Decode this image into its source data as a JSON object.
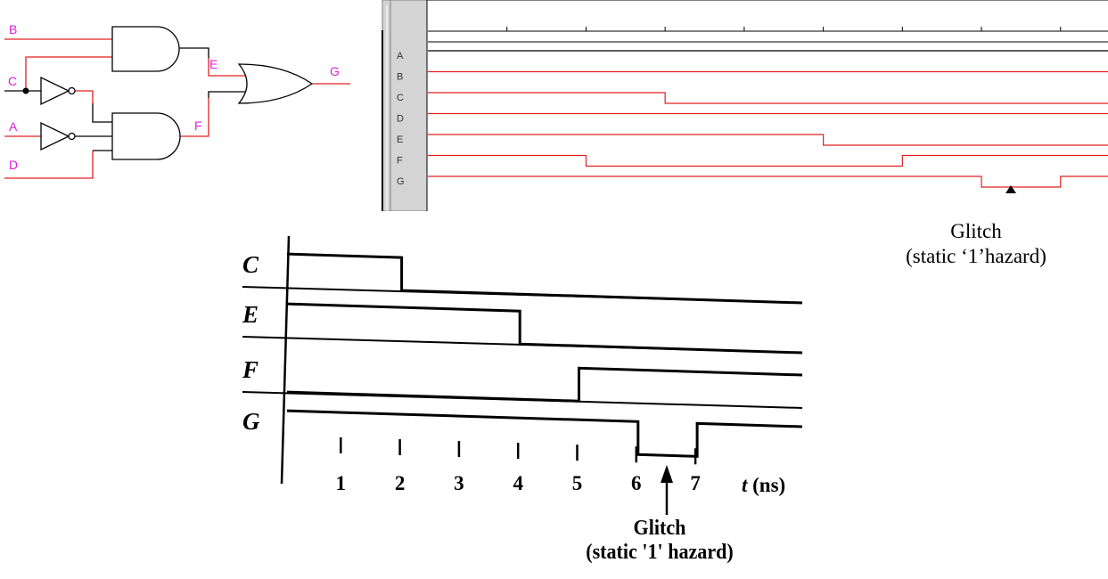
{
  "circuit": {
    "input_labels": [
      "B",
      "C",
      "A",
      "D"
    ],
    "node_labels": [
      "E",
      "F"
    ],
    "output_label": "G",
    "gates": [
      "and-gate",
      "not-gate",
      "not-gate",
      "and-gate",
      "or-gate"
    ],
    "colors": {
      "label": "#e020e0",
      "wire_red": "#e02020",
      "wire_black": "#000000"
    }
  },
  "simulator": {
    "signals": [
      {
        "name": "A",
        "levels": [
          [
            0,
            1
          ]
        ],
        "color": "#000000"
      },
      {
        "name": "B",
        "levels": [
          [
            0,
            1
          ]
        ],
        "color": "#e02020"
      },
      {
        "name": "C",
        "levels": [
          [
            0,
            1
          ],
          [
            3,
            0
          ]
        ],
        "color": "#e02020"
      },
      {
        "name": "D",
        "levels": [
          [
            0,
            1
          ]
        ],
        "color": "#e02020"
      },
      {
        "name": "E",
        "levels": [
          [
            0,
            1
          ],
          [
            5,
            0
          ]
        ],
        "color": "#e02020"
      },
      {
        "name": "F",
        "levels": [
          [
            0,
            1
          ],
          [
            2,
            0
          ],
          [
            6,
            1
          ]
        ],
        "color": "#e02020"
      },
      {
        "name": "G",
        "levels": [
          [
            0,
            1
          ],
          [
            7,
            0
          ],
          [
            8,
            1
          ]
        ],
        "color": "#e02020"
      }
    ],
    "time_span": 8.6,
    "caption": [
      "Glitch",
      "(static ‘1’hazard)"
    ]
  },
  "textbook": {
    "signals": [
      {
        "name": "C",
        "levels": [
          [
            0,
            1
          ],
          [
            2,
            0
          ]
        ]
      },
      {
        "name": "E",
        "levels": [
          [
            0,
            1
          ],
          [
            4,
            0
          ]
        ]
      },
      {
        "name": "F",
        "levels": [
          [
            0,
            0
          ],
          [
            5,
            1
          ]
        ]
      },
      {
        "name": "G",
        "levels": [
          [
            0,
            1
          ],
          [
            6,
            0
          ],
          [
            7,
            1
          ]
        ]
      }
    ],
    "ticks": [
      "1",
      "2",
      "3",
      "4",
      "5",
      "6",
      "7"
    ],
    "axis_label_italic": "t",
    "axis_label_unit": " (ns)",
    "caption": [
      "Glitch",
      "(static '1' hazard)"
    ]
  }
}
